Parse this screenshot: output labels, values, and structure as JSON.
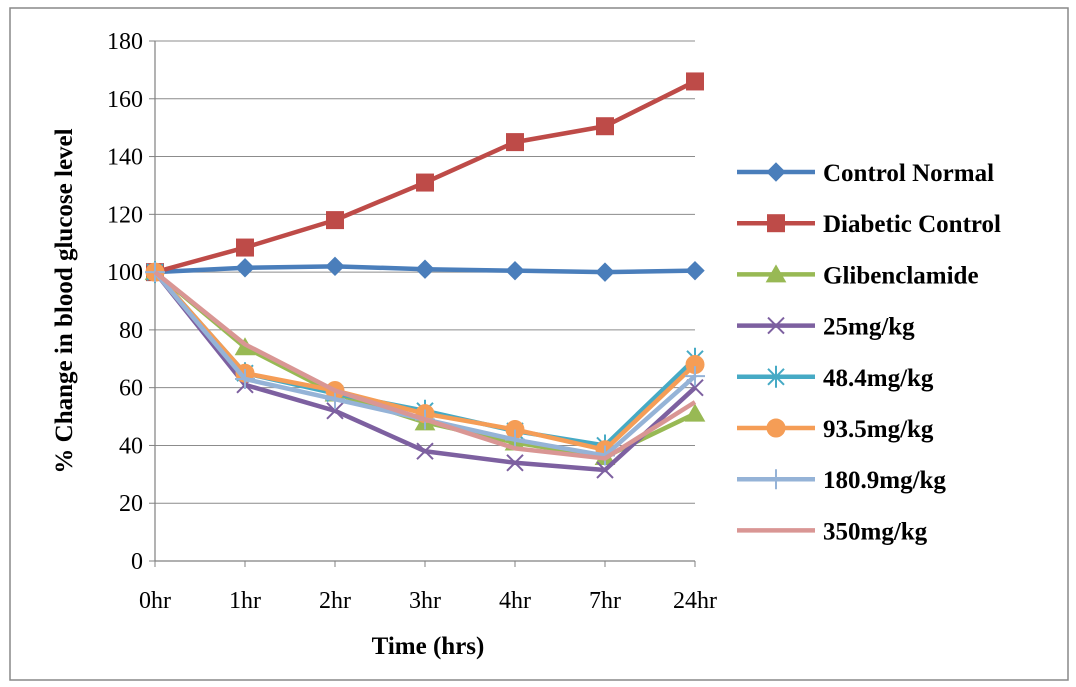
{
  "chart_data": {
    "type": "line",
    "title": "",
    "xlabel": "Time (hrs)",
    "ylabel": "% Change in blood glucose level",
    "categories": [
      "0hr",
      "1hr",
      "2hr",
      "3hr",
      "4hr",
      "7hr",
      "24hr"
    ],
    "ylim": [
      0,
      180
    ],
    "yticks": [
      0,
      20,
      40,
      60,
      80,
      100,
      120,
      140,
      160,
      180
    ],
    "grid": "horizontal",
    "legend_position": "right",
    "series": [
      {
        "name": "Control Normal",
        "color": "#4a7ebb",
        "marker": "diamond",
        "values": [
          100,
          101.5,
          102,
          101,
          100.5,
          100,
          100.5
        ]
      },
      {
        "name": "Diabetic Control",
        "color": "#be4b48",
        "marker": "square",
        "values": [
          100,
          108.5,
          118,
          131,
          145,
          150.5,
          166
        ]
      },
      {
        "name": "Glibenclamide",
        "color": "#98b954",
        "marker": "triangle",
        "values": [
          100,
          74,
          58,
          48,
          41,
          36,
          51
        ]
      },
      {
        "name": "25mg/kg",
        "color": "#7d60a0",
        "marker": "x",
        "values": [
          100,
          61,
          52,
          38,
          34,
          31.5,
          60
        ]
      },
      {
        "name": "48.4mg/kg",
        "color": "#46aac5",
        "marker": "star",
        "values": [
          100,
          65,
          58,
          52,
          45,
          40,
          70
        ]
      },
      {
        "name": "93.5mg/kg",
        "color": "#f59d56",
        "marker": "circle",
        "values": [
          100,
          65,
          59,
          51,
          45.5,
          38.5,
          68
        ]
      },
      {
        "name": "180.9mg/kg",
        "color": "#95b3d7",
        "marker": "plus",
        "values": [
          100,
          63,
          56,
          49,
          42,
          36.5,
          64
        ]
      },
      {
        "name": "350mg/kg",
        "color": "#d99694",
        "marker": "none",
        "values": [
          100,
          75,
          59,
          49,
          39,
          35.5,
          55
        ]
      }
    ]
  }
}
